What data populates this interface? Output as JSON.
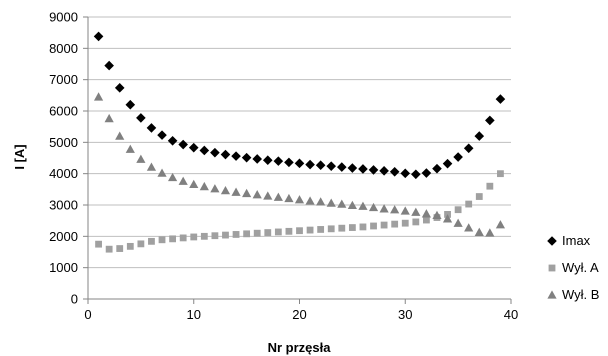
{
  "chart_data": {
    "type": "scatter",
    "title": "",
    "xlabel": "Nr przęsła",
    "ylabel": "I [A]",
    "xlim": [
      0,
      40
    ],
    "ylim": [
      0,
      9000
    ],
    "x_ticks": [
      0,
      10,
      20,
      30,
      40
    ],
    "y_ticks": [
      0,
      1000,
      2000,
      3000,
      4000,
      5000,
      6000,
      7000,
      8000,
      9000
    ],
    "grid": "horizontal",
    "legend_position": "right",
    "x": [
      1,
      2,
      3,
      4,
      5,
      6,
      7,
      8,
      9,
      10,
      11,
      12,
      13,
      14,
      15,
      16,
      17,
      18,
      19,
      20,
      21,
      22,
      23,
      24,
      25,
      26,
      27,
      28,
      29,
      30,
      31,
      32,
      33,
      34,
      35,
      36,
      37,
      38,
      39
    ],
    "series": [
      {
        "name": "Imax",
        "marker": "diamond",
        "color": "#000000",
        "values": [
          8380,
          7450,
          6740,
          6200,
          5780,
          5460,
          5230,
          5050,
          4930,
          4830,
          4740,
          4670,
          4610,
          4560,
          4510,
          4470,
          4430,
          4400,
          4360,
          4330,
          4290,
          4270,
          4240,
          4210,
          4180,
          4150,
          4120,
          4090,
          4060,
          4010,
          3980,
          4020,
          4160,
          4320,
          4530,
          4810,
          5200,
          5700,
          6380
        ]
      },
      {
        "name": "Wył. A",
        "marker": "square",
        "color": "#a0a0a0",
        "values": [
          1750,
          1590,
          1610,
          1680,
          1760,
          1840,
          1890,
          1920,
          1950,
          1980,
          2000,
          2020,
          2040,
          2060,
          2080,
          2100,
          2120,
          2140,
          2160,
          2180,
          2200,
          2220,
          2240,
          2260,
          2280,
          2300,
          2330,
          2360,
          2390,
          2420,
          2460,
          2520,
          2600,
          2700,
          2850,
          3030,
          3270,
          3600,
          4000
        ]
      },
      {
        "name": "Wył. B",
        "marker": "triangle",
        "color": "#808080",
        "values": [
          6450,
          5760,
          5200,
          4780,
          4460,
          4210,
          4020,
          3880,
          3760,
          3660,
          3590,
          3520,
          3460,
          3410,
          3370,
          3330,
          3290,
          3250,
          3210,
          3170,
          3130,
          3100,
          3060,
          3030,
          2990,
          2960,
          2920,
          2880,
          2850,
          2810,
          2770,
          2720,
          2670,
          2560,
          2420,
          2270,
          2130,
          2110,
          2370
        ]
      }
    ]
  }
}
